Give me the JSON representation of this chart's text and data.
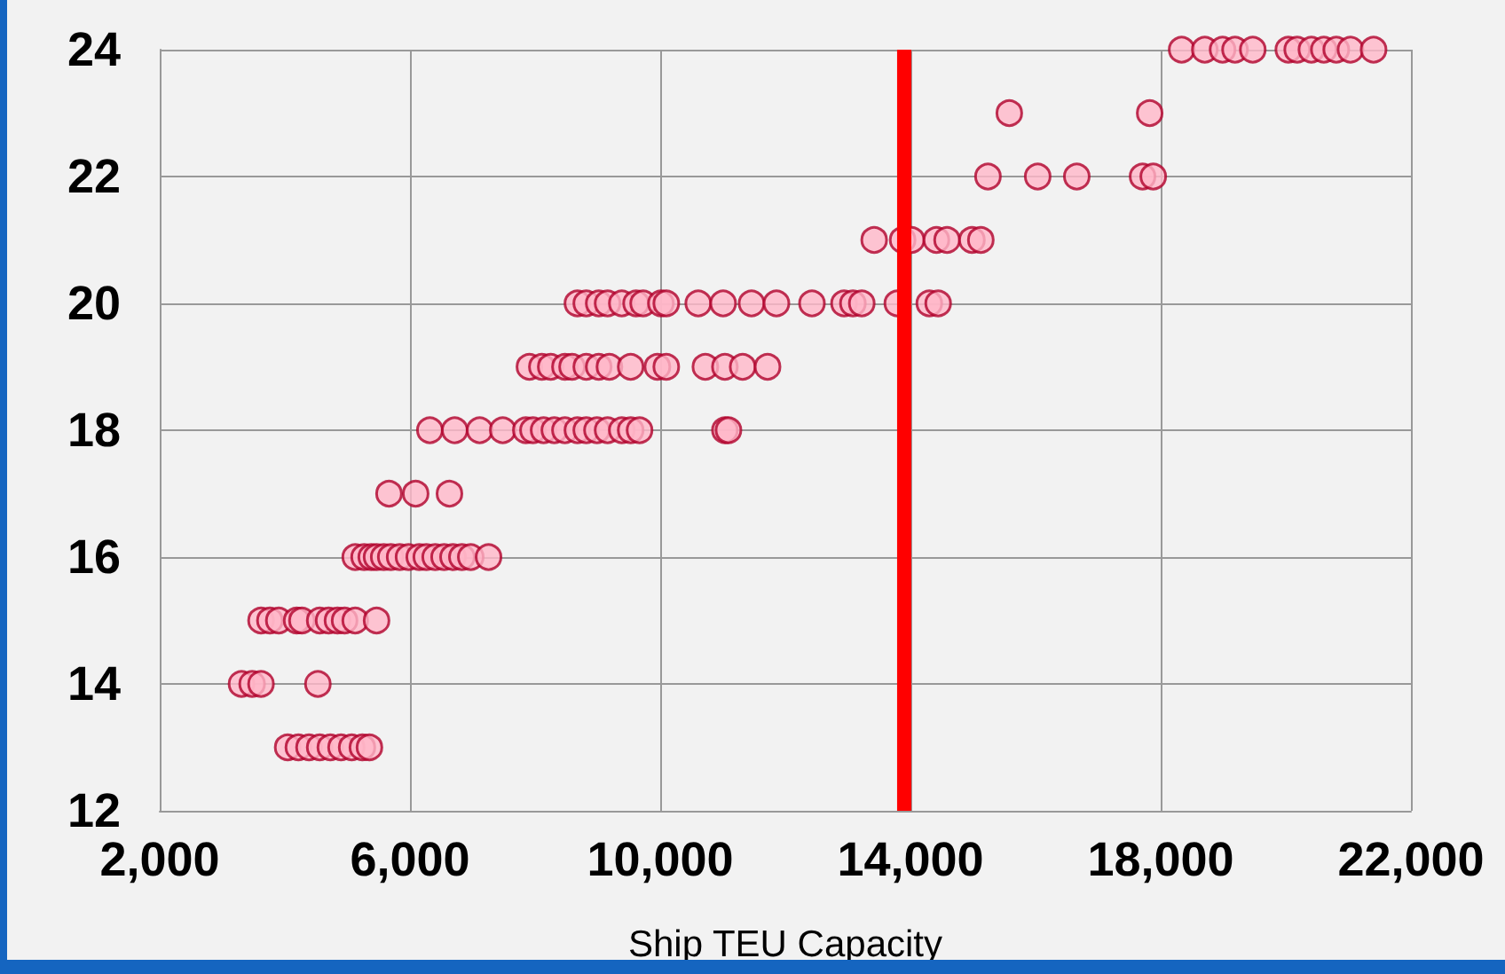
{
  "chart_data": {
    "type": "scatter",
    "xlabel": "Ship TEU Capacity",
    "marker": "circle",
    "grid": true,
    "xlim": [
      2000,
      22000
    ],
    "ylim": [
      12,
      24
    ],
    "xticks": [
      {
        "value": 2000,
        "label": "2,000"
      },
      {
        "value": 6000,
        "label": "6,000"
      },
      {
        "value": 10000,
        "label": "10,000"
      },
      {
        "value": 14000,
        "label": "14,000"
      },
      {
        "value": 18000,
        "label": "18,000"
      },
      {
        "value": 22000,
        "label": "22,000"
      }
    ],
    "yticks": [
      12,
      14,
      16,
      18,
      20,
      22,
      24
    ],
    "ref_lines": [
      {
        "axis": "x",
        "value": 13900,
        "color": "#ff0000"
      }
    ],
    "series": [
      {
        "color": "#ffb6c8",
        "x": [
          4045,
          4216,
          4386,
          4557,
          4727,
          4898,
          5068,
          5239,
          5352,
          3307,
          3477,
          3619,
          4528,
          3619,
          3761,
          3903,
          4188,
          4273,
          4557,
          4699,
          4841,
          4955,
          5125,
          5466,
          5125,
          5267,
          5381,
          5466,
          5580,
          5693,
          5835,
          5977,
          6148,
          6261,
          6403,
          6545,
          6688,
          6830,
          6972,
          7256,
          5665,
          6091,
          6631,
          6318,
          6716,
          7114,
          7483,
          7852,
          7966,
          8136,
          8307,
          8477,
          8676,
          8818,
          8989,
          9159,
          9386,
          9528,
          9670,
          11034,
          11091,
          7909,
          8108,
          8250,
          8477,
          8591,
          8818,
          9017,
          9188,
          9528,
          9955,
          10097,
          10722,
          11034,
          11318,
          11716,
          8676,
          8818,
          9017,
          9159,
          9386,
          9614,
          9727,
          10011,
          10097,
          10608,
          11006,
          11460,
          11858,
          12426,
          12938,
          13080,
          13222,
          13790,
          14301,
          14443,
          13420,
          13875,
          14017,
          14415,
          14585,
          14983,
          15125,
          15239,
          16034,
          16659,
          17710,
          17881,
          15580,
          17824,
          18335,
          18705,
          18989,
          19188,
          19472,
          20040,
          20182,
          20409,
          20608,
          20807,
          21034,
          21403
        ],
        "values": [
          13,
          13,
          13,
          13,
          13,
          13,
          13,
          13,
          13,
          14,
          14,
          14,
          14,
          15,
          15,
          15,
          15,
          15,
          15,
          15,
          15,
          15,
          15,
          15,
          16,
          16,
          16,
          16,
          16,
          16,
          16,
          16,
          16,
          16,
          16,
          16,
          16,
          16,
          16,
          16,
          17,
          17,
          17,
          18,
          18,
          18,
          18,
          18,
          18,
          18,
          18,
          18,
          18,
          18,
          18,
          18,
          18,
          18,
          18,
          18,
          18,
          19,
          19,
          19,
          19,
          19,
          19,
          19,
          19,
          19,
          19,
          19,
          19,
          19,
          19,
          19,
          20,
          20,
          20,
          20,
          20,
          20,
          20,
          20,
          20,
          20,
          20,
          20,
          20,
          20,
          20,
          20,
          20,
          20,
          20,
          20,
          21,
          21,
          21,
          21,
          21,
          21,
          21,
          22,
          22,
          22,
          22,
          22,
          23,
          23,
          24,
          24,
          24,
          24,
          24,
          24,
          24,
          24,
          24,
          24,
          24,
          24
        ]
      }
    ]
  }
}
